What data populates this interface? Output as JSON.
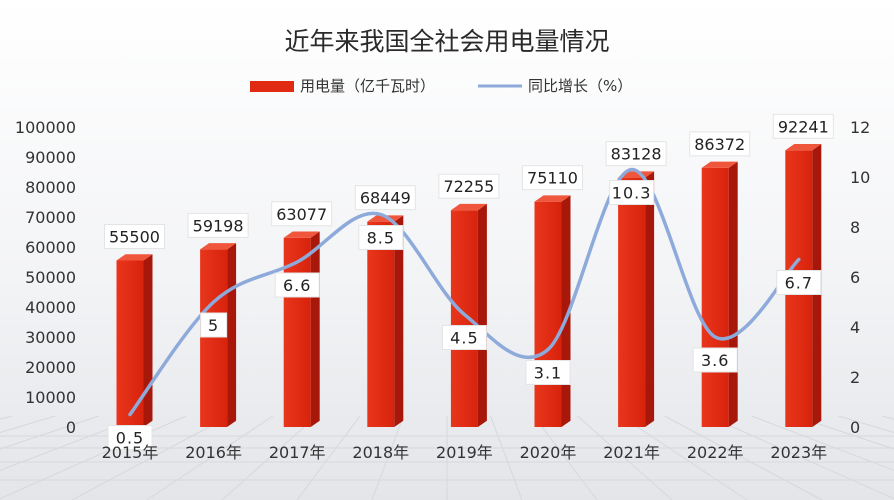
{
  "chart_data": {
    "type": "bar",
    "title": "近年来我国全社会用电量情况",
    "categories": [
      "2015年",
      "2016年",
      "2017年",
      "2018年",
      "2019年",
      "2020年",
      "2021年",
      "2022年",
      "2023年"
    ],
    "series": [
      {
        "name": "用电量（亿千瓦时）",
        "type": "bar",
        "axis": "left",
        "values": [
          55500,
          59198,
          63077,
          68449,
          72255,
          75110,
          83128,
          86372,
          92241
        ],
        "labels": [
          "55500",
          "59198",
          "63077",
          "68449",
          "72255",
          "75110",
          "83128",
          "86372",
          "92241"
        ],
        "color": "#e02a12"
      },
      {
        "name": "同比增长（%）",
        "type": "line",
        "axis": "right",
        "values": [
          0.5,
          5,
          6.6,
          8.5,
          4.5,
          3.1,
          10.3,
          3.6,
          6.7
        ],
        "labels": [
          "0.5",
          "5",
          "6.6",
          "8.5",
          "4.5",
          "3.1",
          "10.3",
          "3.6",
          "6.7"
        ],
        "color": "#8eaadb"
      }
    ],
    "y_left": {
      "ylim": [
        0,
        100000
      ],
      "ticks": [
        "0",
        "10000",
        "20000",
        "30000",
        "40000",
        "50000",
        "60000",
        "70000",
        "80000",
        "90000",
        "100000"
      ]
    },
    "y_right": {
      "ylim": [
        0,
        12
      ],
      "ticks": [
        "0",
        "2",
        "4",
        "6",
        "8",
        "10",
        "12"
      ]
    },
    "legend_position": "top-center",
    "grid": false
  }
}
